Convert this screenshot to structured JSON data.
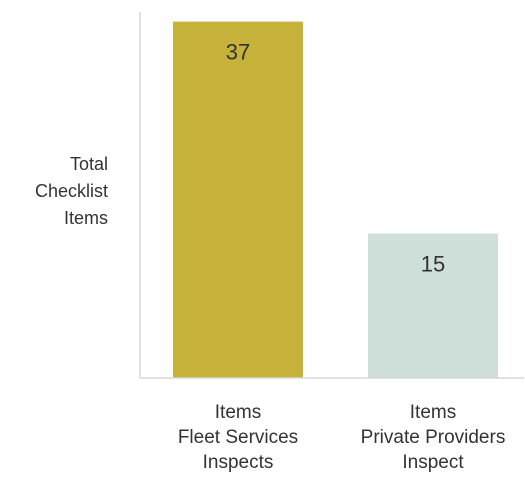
{
  "chart_data": {
    "type": "bar",
    "title": "",
    "xlabel": "",
    "ylabel": "Total Checklist Items",
    "ylabel_lines": [
      "Total",
      "Checklist",
      "Items"
    ],
    "categories": [
      "Items Fleet Services Inspects",
      "Items Private Providers Inspect"
    ],
    "category_lines": [
      [
        "Items",
        "Fleet Services",
        "Inspects"
      ],
      [
        "Items",
        "Private Providers",
        "Inspect"
      ]
    ],
    "values": [
      37,
      15
    ],
    "data_labels": [
      "37",
      "15"
    ],
    "colors": [
      "#c6b13a",
      "#cfe0da"
    ],
    "ylim": [
      0,
      38
    ],
    "grid": false,
    "legend": "none"
  }
}
